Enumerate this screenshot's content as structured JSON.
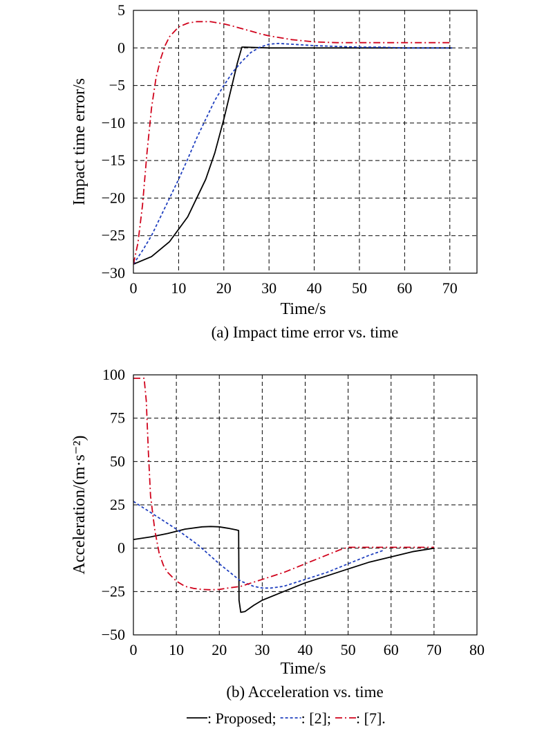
{
  "figure": {
    "legend": {
      "items": [
        {
          "label": "Proposed",
          "color": "#000000",
          "dash": "solid"
        },
        {
          "label": "[2]",
          "color": "#1f3fbf",
          "dash": "dotted"
        },
        {
          "label": "[7]",
          "color": "#d0021b",
          "dash": "dashdot"
        }
      ],
      "separator": ": ",
      "item_sep": "; ",
      "ending": "."
    }
  },
  "chart_data": [
    {
      "type": "line",
      "caption": "(a) Impact time error vs. time",
      "xlabel": "Time/s",
      "ylabel": "Impact time error/s",
      "xlim": [
        0,
        76
      ],
      "ylim": [
        -30,
        5
      ],
      "xticks": [
        0,
        10,
        20,
        30,
        40,
        50,
        60,
        70
      ],
      "yticks": [
        -30,
        -25,
        -20,
        -15,
        -10,
        -5,
        0,
        5
      ],
      "xticklabels": [
        "0",
        "10",
        "20",
        "30",
        "40",
        "50",
        "60",
        "70"
      ],
      "yticklabels": [
        "−30",
        "−25",
        "−20",
        "−15",
        "−10",
        "−5",
        "0",
        "5"
      ],
      "grid": true,
      "series": [
        {
          "name": "Proposed",
          "color": "#000000",
          "dash": "solid",
          "x": [
            0,
            4,
            8,
            12,
            16,
            18,
            20,
            22,
            23,
            24,
            24.5,
            30,
            40,
            50,
            60,
            70.5
          ],
          "y": [
            -28.8,
            -27.8,
            -25.8,
            -22.5,
            -17.5,
            -14.0,
            -9.5,
            -4.5,
            -2.0,
            0.1,
            0.1,
            0.0,
            0.0,
            0.0,
            0.0,
            0.0
          ]
        },
        {
          "name": "[2]",
          "color": "#1f3fbf",
          "dash": "dotted",
          "x": [
            0,
            2,
            4,
            6,
            8,
            10,
            12,
            14,
            16,
            18,
            20,
            22,
            24,
            26,
            28,
            30,
            32,
            35,
            40,
            45,
            50,
            55,
            60,
            70.5
          ],
          "y": [
            -28.8,
            -27.0,
            -25.0,
            -22.5,
            -20.0,
            -17.5,
            -14.8,
            -12.0,
            -9.5,
            -7.0,
            -5.0,
            -3.2,
            -1.8,
            -0.6,
            0.1,
            0.5,
            0.6,
            0.5,
            0.3,
            0.2,
            0.1,
            0.1,
            0.0,
            0.0
          ]
        },
        {
          "name": "[7]",
          "color": "#d0021b",
          "dash": "dashdot",
          "x": [
            0,
            1,
            2,
            3,
            4,
            5,
            6,
            7,
            8,
            10,
            12,
            14,
            16,
            17,
            18,
            20,
            22,
            25,
            28,
            30,
            35,
            40,
            45,
            50,
            60,
            70.5
          ],
          "y": [
            -28.8,
            -26.0,
            -21.0,
            -14.0,
            -8.0,
            -4.0,
            -1.5,
            0.3,
            1.5,
            2.8,
            3.3,
            3.5,
            3.5,
            3.5,
            3.4,
            3.2,
            2.9,
            2.4,
            1.9,
            1.6,
            1.1,
            0.8,
            0.7,
            0.7,
            0.7,
            0.7
          ]
        }
      ]
    },
    {
      "type": "line",
      "caption": "(b) Acceleration vs. time",
      "xlabel": "Time/s",
      "ylabel": "Acceleration/(m·s⁻²)",
      "xlim": [
        0,
        80
      ],
      "ylim": [
        -50,
        100
      ],
      "xticks": [
        0,
        10,
        20,
        30,
        40,
        50,
        60,
        70,
        80
      ],
      "yticks": [
        -50,
        -25,
        0,
        25,
        50,
        75,
        100
      ],
      "xticklabels": [
        "0",
        "10",
        "20",
        "30",
        "40",
        "50",
        "60",
        "70",
        "80"
      ],
      "yticklabels": [
        "−50",
        "−25",
        "0",
        "25",
        "50",
        "75",
        "100"
      ],
      "grid": true,
      "series": [
        {
          "name": "Proposed",
          "color": "#000000",
          "dash": "solid",
          "x": [
            0,
            4,
            8,
            12,
            16,
            18,
            20,
            22,
            24,
            24.5,
            24.6,
            25,
            26,
            28,
            30,
            35,
            40,
            45,
            50,
            55,
            60,
            65,
            70
          ],
          "y": [
            5,
            6.5,
            8.5,
            11,
            12.3,
            12.5,
            12.3,
            11.5,
            10.5,
            10.2,
            -30,
            -37,
            -36.5,
            -33,
            -30,
            -25,
            -20,
            -16,
            -12,
            -8,
            -5,
            -2,
            0
          ]
        },
        {
          "name": "[2]",
          "color": "#1f3fbf",
          "dash": "dotted",
          "x": [
            0,
            5,
            10,
            15,
            20,
            25,
            28,
            30,
            32,
            35,
            40,
            45,
            50,
            55,
            58.5
          ],
          "y": [
            27,
            19,
            11,
            2,
            -9,
            -19,
            -22,
            -23,
            -23,
            -22,
            -18,
            -14,
            -9,
            -4,
            -1
          ]
        },
        {
          "name": "[7]",
          "color": "#d0021b",
          "dash": "dashdot",
          "x": [
            0,
            2.5,
            3,
            3.5,
            4,
            5,
            6,
            7,
            8,
            10,
            12,
            14,
            16,
            18,
            20,
            22,
            25,
            30,
            35,
            40,
            45,
            48,
            50,
            55,
            60,
            70
          ],
          "y": [
            98,
            98,
            85,
            55,
            30,
            10,
            -3,
            -10,
            -14,
            -19,
            -22,
            -23.2,
            -23.8,
            -24,
            -23.8,
            -23,
            -22,
            -18,
            -14,
            -9,
            -4,
            -1,
            0.5,
            0.5,
            0.5,
            0.5
          ]
        }
      ]
    }
  ]
}
